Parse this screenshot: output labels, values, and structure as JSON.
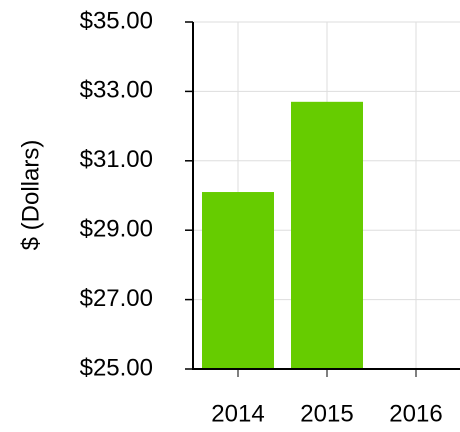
{
  "chart_data": {
    "type": "bar",
    "y_label": "$ (Dollars)",
    "categories": [
      "2014",
      "2015",
      "2016"
    ],
    "values": [
      30.1,
      32.7,
      null
    ],
    "color": "#66cc00",
    "ylim": [
      25,
      35
    ],
    "yticks": [
      {
        "value": 25,
        "label": "$25.00"
      },
      {
        "value": 27,
        "label": "$27.00"
      },
      {
        "value": 29,
        "label": "$29.00"
      },
      {
        "value": 31,
        "label": "$31.00"
      },
      {
        "value": 33,
        "label": "$33.00"
      },
      {
        "value": 35,
        "label": "$35.00"
      }
    ],
    "grid": true
  }
}
